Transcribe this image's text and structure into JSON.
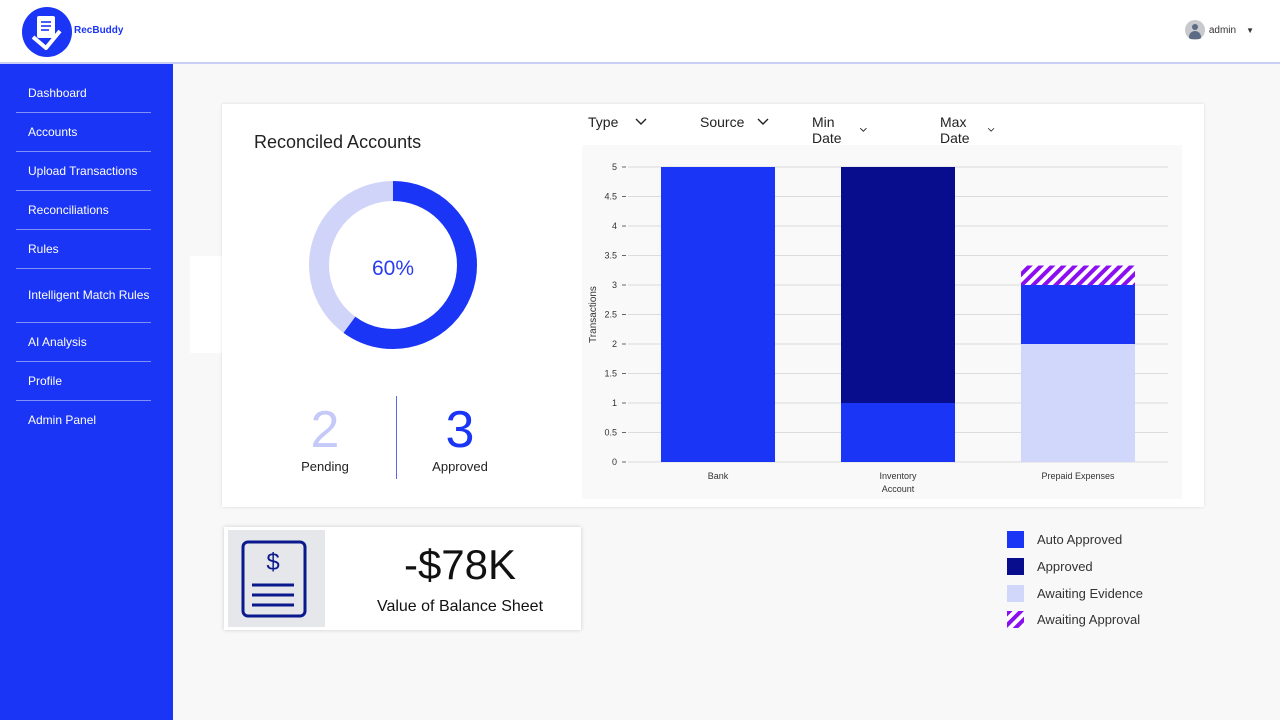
{
  "app": {
    "name": "RecBuddy"
  },
  "user": {
    "name": "admin"
  },
  "sidebar": {
    "items": [
      {
        "label": "Dashboard"
      },
      {
        "label": "Accounts"
      },
      {
        "label": "Upload Transactions"
      },
      {
        "label": "Reconciliations"
      },
      {
        "label": "Rules"
      },
      {
        "label": "Intelligent Match Rules"
      },
      {
        "label": "AI Analysis"
      },
      {
        "label": "Profile"
      },
      {
        "label": "Admin Panel"
      }
    ]
  },
  "filters": {
    "type": "Type",
    "source": "Source",
    "min_date": "Min Date",
    "max_date": "Max Date"
  },
  "reconciled": {
    "title": "Reconciled Accounts",
    "percent_label": "60%",
    "percent": 0.6,
    "pending_count": "2",
    "pending_label": "Pending",
    "approved_count": "3",
    "approved_label": "Approved"
  },
  "balance": {
    "value": "-$78K",
    "label": "Value of Balance Sheet"
  },
  "colors": {
    "brand": "#1a35f5",
    "auto_approved": "#1a35f5",
    "approved": "#070d8c",
    "awaiting_evidence": "#d1d7fb",
    "awaiting_approval": "#8a10f0",
    "donut_track": "#d1d4f9"
  },
  "chart_data": {
    "type": "bar",
    "stacked": true,
    "categories": [
      "Bank",
      "Inventory\nAccount",
      "Prepaid Expenses"
    ],
    "ylabel": "Transactions",
    "xlabel": "",
    "ylim": [
      0,
      5
    ],
    "yticks": [
      "0",
      "0.5",
      "1",
      "1.5",
      "2",
      "2.5",
      "3",
      "3.5",
      "4",
      "4.5",
      "5"
    ],
    "grid": true,
    "series": [
      {
        "name": "Awaiting Evidence",
        "values": [
          0,
          0,
          2
        ]
      },
      {
        "name": "Auto Approved",
        "values": [
          5,
          1,
          1
        ]
      },
      {
        "name": "Approved",
        "values": [
          0,
          4,
          0
        ]
      },
      {
        "name": "Awaiting Approval",
        "values": [
          0,
          0,
          0.33
        ]
      }
    ]
  },
  "legend": [
    {
      "label": "Auto Approved"
    },
    {
      "label": "Approved"
    },
    {
      "label": "Awaiting Evidence"
    },
    {
      "label": "Awaiting Approval"
    }
  ]
}
